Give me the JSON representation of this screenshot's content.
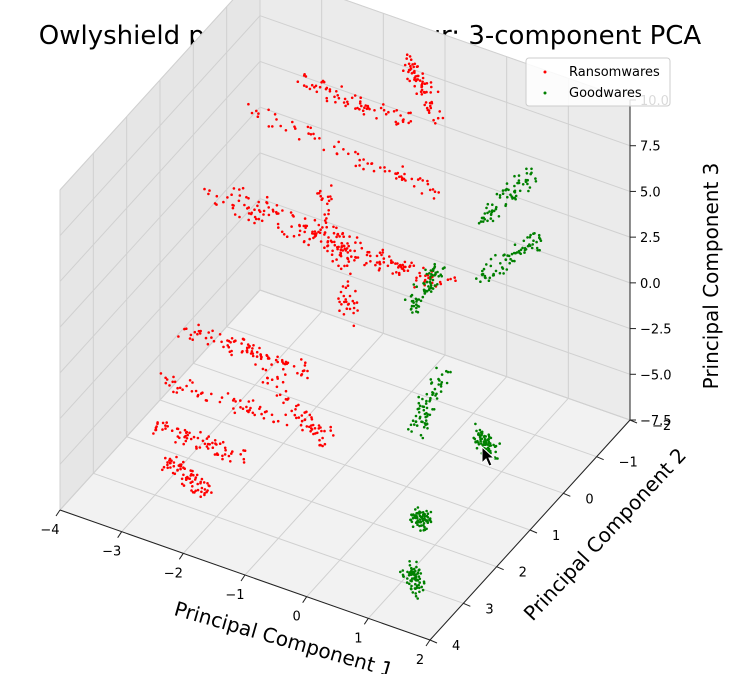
{
  "chart_data": {
    "type": "scatter",
    "title": "Owlyshield programs behaviour: 3-component PCA",
    "xlabel": "Principal Component 1",
    "ylabel": "Principal Component 2",
    "zlabel": "Principal Component 3",
    "x_ticks": [
      "2",
      "1",
      "0",
      "−1",
      "−2",
      "−3",
      "−4"
    ],
    "y_ticks": [
      "−2",
      "−1",
      "0",
      "1",
      "2",
      "3",
      "4"
    ],
    "z_ticks": [
      "−7.5",
      "−5.0",
      "−2.5",
      "0.0",
      "2.5",
      "5.0",
      "7.5",
      "10.0"
    ],
    "xlim": [
      -4,
      2
    ],
    "ylim": [
      -2,
      4
    ],
    "zlim": [
      -7.5,
      10
    ],
    "grid": true,
    "legend_position": "top-right",
    "series": [
      {
        "name": "Ransomwares",
        "color": "#ff0000",
        "clusters": [
          {
            "x0": 1.8,
            "y0": 0.4,
            "x1": -2.2,
            "y1": 0.9,
            "z0": 3.0,
            "z1": 3.6
          },
          {
            "x0": 1.6,
            "y0": -0.9,
            "x1": -1.8,
            "y1": -0.4,
            "z0": 5.1,
            "z1": 5.4
          },
          {
            "x0": 1.5,
            "y0": -0.2,
            "x1": -1.6,
            "y1": 0.3,
            "z0": 2.2,
            "z1": 2.6
          },
          {
            "x0": 0.9,
            "y0": -1.2,
            "x1": -1.0,
            "y1": -1.0,
            "z0": 6.8,
            "z1": 7.2
          },
          {
            "x0": 0.6,
            "y0": -0.6,
            "x1": -2.0,
            "y1": -0.4,
            "z0": 0.3,
            "z1": 0.7
          },
          {
            "x0": 1.9,
            "y0": 0.6,
            "x1": -0.4,
            "y1": 0.8,
            "z0": -4.2,
            "z1": -3.6
          },
          {
            "x0": 2.0,
            "y0": 1.1,
            "x1": -0.8,
            "y1": 1.3,
            "z0": -6.1,
            "z1": -5.4
          },
          {
            "x0": 1.8,
            "y0": 1.6,
            "x1": 0.2,
            "y1": 1.8,
            "z0": -7.4,
            "z1": -7.0
          },
          {
            "x0": 0.8,
            "y0": 0.8,
            "x1": -0.9,
            "y1": 1.4,
            "z0": -3.0,
            "z1": -5.5
          },
          {
            "x0": 0.4,
            "y0": -1.0,
            "x1": -0.7,
            "y1": 0.2,
            "z0": 2.0,
            "z1": -1.5
          },
          {
            "x0": -0.5,
            "y0": -1.8,
            "x1": -1.2,
            "y1": -1.4,
            "z0": 8.5,
            "z1": 7.0
          },
          {
            "x0": 1.2,
            "y0": 2.2,
            "x1": 0.2,
            "y1": 2.8,
            "z0": -7.5,
            "z1": -7.0
          }
        ]
      },
      {
        "name": "Goodwares",
        "color": "#008000",
        "clusters": [
          {
            "x0": -1.4,
            "y0": -0.2,
            "x1": -2.4,
            "y1": 0.8,
            "z0": -1.0,
            "z1": 4.5
          },
          {
            "x0": -1.8,
            "y0": 0.4,
            "x1": -2.9,
            "y1": 1.6,
            "z0": -6.0,
            "z1": 1.0
          },
          {
            "x0": -2.6,
            "y0": 1.6,
            "x1": -3.4,
            "y1": 3.2,
            "z0": -7.5,
            "z1": -3.0
          },
          {
            "x0": -2.2,
            "y0": -0.8,
            "x1": -3.6,
            "y1": 0.0,
            "z0": 0.5,
            "z1": 6.0
          },
          {
            "x0": -3.2,
            "y0": 0.6,
            "x1": -3.9,
            "y1": 2.4,
            "z0": -5.0,
            "z1": 0.5
          },
          {
            "x0": -2.9,
            "y0": 2.6,
            "x1": -3.8,
            "y1": 4.0,
            "z0": -7.5,
            "z1": -5.0
          },
          {
            "x0": -1.9,
            "y0": -1.4,
            "x1": -3.2,
            "y1": -0.6,
            "z0": 2.0,
            "z1": 8.0
          }
        ]
      }
    ]
  },
  "legend": {
    "items": [
      {
        "label": "Ransomwares",
        "color": "#ff0000"
      },
      {
        "label": "Goodwares",
        "color": "#008000"
      }
    ]
  },
  "overlay": {
    "cursor": "mouse-pointer-icon"
  }
}
